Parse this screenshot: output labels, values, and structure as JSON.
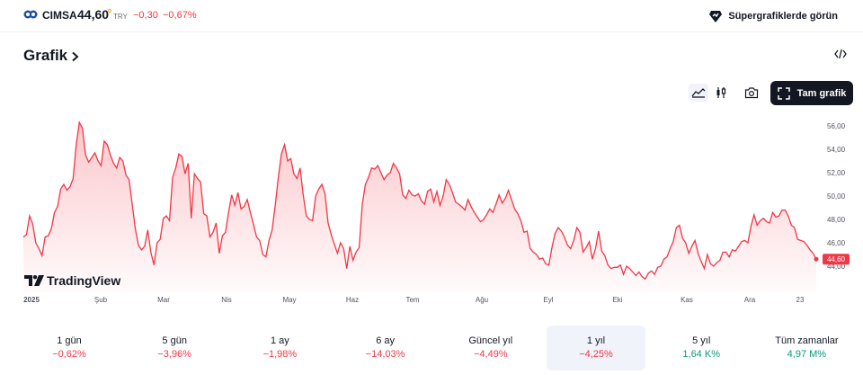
{
  "symbol": {
    "name": "CIMSA",
    "price": "44,60",
    "currency": "TRY",
    "change": "−0,30",
    "change_percent": "−0,67%"
  },
  "header": {
    "supercharts_label": "Süpergrafiklerde görün"
  },
  "section": {
    "title": "Grafik"
  },
  "toolbar": {
    "fullscreen_label": "Tam grafik"
  },
  "colors": {
    "negative": "#f23645",
    "positive": "#089981",
    "line": "#f23645"
  },
  "chart_data": {
    "type": "area",
    "watermark": "TradingView",
    "x_labels": [
      "2025",
      "Şub",
      "Mar",
      "Nis",
      "May",
      "Haz",
      "Tem",
      "Ağu",
      "Eyl",
      "Eki",
      "Kas",
      "Ara",
      "23"
    ],
    "y_ticks": [
      "56,00",
      "54,00",
      "52,00",
      "50,00",
      "48,00",
      "46,00",
      "44,00"
    ],
    "ylim": [
      42.8,
      57.0
    ],
    "last_price_label": "44,60",
    "last_price": 44.6,
    "series": [
      {
        "values": [
          46.5,
          46.7,
          48.3,
          47.6,
          46.0,
          45.5,
          44.9,
          46.5,
          46.6,
          47.2,
          48.6,
          49.1,
          50.6,
          51.0,
          50.5,
          50.8,
          51.5,
          54.4,
          56.3,
          55.8,
          53.5,
          52.9,
          53.3,
          53.7,
          53.0,
          52.6,
          54.7,
          54.4,
          53.5,
          52.8,
          52.4,
          53.3,
          53.0,
          51.8,
          51.4,
          49.3,
          47.2,
          45.8,
          45.4,
          45.7,
          47.1,
          45.2,
          44.1,
          46.0,
          46.3,
          48.1,
          48.3,
          47.9,
          51.6,
          52.4,
          53.6,
          53.4,
          51.9,
          52.8,
          48.1,
          51.9,
          51.5,
          51.2,
          48.5,
          48.3,
          46.5,
          46.9,
          47.7,
          45.1,
          46.6,
          46.9,
          48.6,
          50.1,
          49.2,
          50.3,
          48.9,
          49.1,
          49.7,
          48.6,
          47.6,
          46.5,
          46.2,
          45.0,
          44.8,
          46.2,
          47.1,
          49.2,
          51.6,
          53.6,
          54.4,
          53.0,
          53.2,
          51.9,
          51.5,
          52.4,
          50.1,
          48.3,
          48.0,
          47.9,
          50.0,
          50.6,
          51.0,
          50.2,
          47.7,
          46.7,
          45.9,
          45.1,
          46.0,
          45.5,
          43.8,
          45.7,
          44.5,
          45.2,
          45.6,
          49.3,
          51.0,
          51.6,
          52.4,
          52.3,
          52.6,
          52.0,
          51.4,
          51.8,
          52.0,
          52.8,
          52.4,
          51.9,
          50.1,
          49.8,
          50.5,
          50.1,
          50.0,
          50.2,
          49.6,
          49.3,
          50.4,
          50.6,
          49.5,
          50.4,
          49.2,
          50.0,
          51.4,
          51.0,
          50.3,
          49.5,
          49.3,
          49.1,
          48.8,
          49.7,
          49.1,
          48.6,
          48.2,
          47.8,
          48.0,
          48.4,
          48.9,
          48.6,
          49.3,
          50.1,
          49.4,
          49.8,
          50.5,
          49.7,
          48.9,
          48.5,
          47.9,
          46.9,
          47.0,
          45.5,
          45.2,
          45.0,
          44.6,
          44.7,
          44.2,
          44.1,
          45.6,
          46.8,
          47.3,
          47.0,
          46.5,
          45.8,
          45.5,
          46.2,
          47.3,
          46.9,
          45.2,
          45.6,
          46.1,
          44.6,
          45.5,
          47.0,
          45.3,
          44.9,
          44.1,
          43.8,
          43.9,
          43.9,
          44.1,
          43.3,
          44.0,
          43.8,
          43.5,
          43.2,
          43.5,
          43.1,
          42.9,
          43.4,
          43.6,
          43.3,
          43.9,
          44.0,
          44.6,
          44.8,
          45.5,
          46.1,
          47.3,
          47.5,
          46.4,
          46.0,
          45.1,
          45.7,
          46.2,
          45.1,
          44.4,
          43.8,
          45.0,
          44.2,
          44.0,
          44.3,
          44.5,
          45.2,
          45.2,
          44.8,
          45.4,
          45.3,
          45.7,
          46.1,
          46.2,
          46.0,
          47.4,
          48.4,
          47.5,
          47.9,
          48.1,
          47.8,
          47.7,
          48.6,
          48.2,
          48.3,
          48.8,
          48.8,
          48.3,
          47.5,
          47.3,
          46.3,
          46.2,
          46.1,
          45.8,
          45.4,
          45.1,
          44.6
        ]
      }
    ]
  },
  "periods": [
    {
      "label": "1 gün",
      "value": "−0,62%",
      "trend": "neg",
      "selected": false
    },
    {
      "label": "5 gün",
      "value": "−3,96%",
      "trend": "neg",
      "selected": false
    },
    {
      "label": "1 ay",
      "value": "−1,98%",
      "trend": "neg",
      "selected": false
    },
    {
      "label": "6 ay",
      "value": "−14,03%",
      "trend": "neg",
      "selected": false
    },
    {
      "label": "Güncel yıl",
      "value": "−4,49%",
      "trend": "neg",
      "selected": false
    },
    {
      "label": "1 yıl",
      "value": "−4,25%",
      "trend": "neg",
      "selected": true
    },
    {
      "label": "5 yıl",
      "value": "1,64 K%",
      "trend": "pos",
      "selected": false
    },
    {
      "label": "Tüm zamanlar",
      "value": "4,97 M%",
      "trend": "pos",
      "selected": false
    }
  ]
}
